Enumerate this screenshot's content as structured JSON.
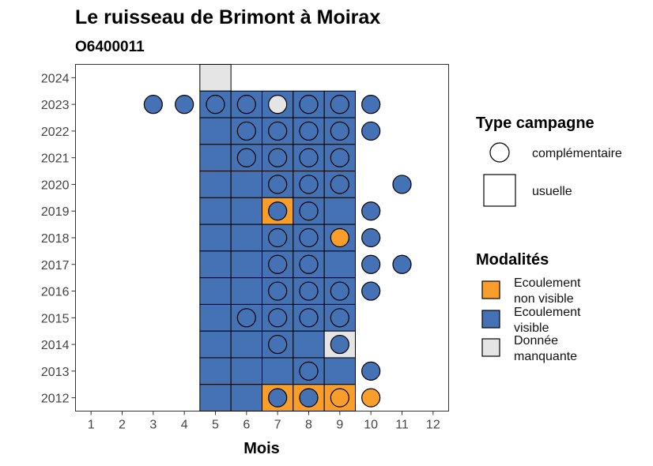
{
  "chart_data": {
    "type": "heatmap",
    "title": "Le ruisseau de Brimont à Moirax",
    "subtitle": "O6400011",
    "xlabel": "Mois",
    "ylabel": "",
    "x_ticks": [
      "1",
      "2",
      "3",
      "4",
      "5",
      "6",
      "7",
      "8",
      "9",
      "10",
      "11",
      "12"
    ],
    "y_ticks": [
      "2012",
      "2013",
      "2014",
      "2015",
      "2016",
      "2017",
      "2018",
      "2019",
      "2020",
      "2021",
      "2022",
      "2023",
      "2024"
    ],
    "xlim": [
      0.5,
      12.5
    ],
    "ylim": [
      2011.5,
      2024.5
    ],
    "colors": {
      "Ecoulement non visible": "#F99D2B",
      "Ecoulement visible": "#4472B4",
      "Donnée manquante": "#E5E5E5"
    },
    "legend_campaign": {
      "title": "Type campagne",
      "items": [
        {
          "label": "complémentaire",
          "shape": "circle"
        },
        {
          "label": "usuelle",
          "shape": "square"
        }
      ]
    },
    "legend_modalites": {
      "title": "Modalités",
      "items": [
        {
          "key": "Ecoulement non visible",
          "lines": [
            "Ecoulement",
            "non visible"
          ]
        },
        {
          "key": "Ecoulement visible",
          "lines": [
            "Ecoulement",
            "visible"
          ]
        },
        {
          "key": "Donnée manquante",
          "lines": [
            "Donnée",
            "manquante"
          ]
        }
      ]
    },
    "legend_position": "right",
    "grid": false,
    "usuelle": [
      {
        "year": 2024,
        "months": [
          [
            5,
            "Donnée manquante"
          ]
        ]
      },
      {
        "year": 2023,
        "months": [
          [
            5,
            "Ecoulement visible"
          ],
          [
            6,
            "Ecoulement visible"
          ],
          [
            7,
            "Ecoulement visible"
          ],
          [
            8,
            "Ecoulement visible"
          ],
          [
            9,
            "Ecoulement visible"
          ]
        ]
      },
      {
        "year": 2022,
        "months": [
          [
            5,
            "Ecoulement visible"
          ],
          [
            6,
            "Ecoulement visible"
          ],
          [
            7,
            "Ecoulement visible"
          ],
          [
            8,
            "Ecoulement visible"
          ],
          [
            9,
            "Ecoulement visible"
          ]
        ]
      },
      {
        "year": 2021,
        "months": [
          [
            5,
            "Ecoulement visible"
          ],
          [
            6,
            "Ecoulement visible"
          ],
          [
            7,
            "Ecoulement visible"
          ],
          [
            8,
            "Ecoulement visible"
          ],
          [
            9,
            "Ecoulement visible"
          ]
        ]
      },
      {
        "year": 2020,
        "months": [
          [
            5,
            "Ecoulement visible"
          ],
          [
            6,
            "Ecoulement visible"
          ],
          [
            7,
            "Ecoulement visible"
          ],
          [
            8,
            "Ecoulement visible"
          ],
          [
            9,
            "Ecoulement visible"
          ]
        ]
      },
      {
        "year": 2019,
        "months": [
          [
            5,
            "Ecoulement visible"
          ],
          [
            6,
            "Ecoulement visible"
          ],
          [
            7,
            "Ecoulement non visible"
          ],
          [
            8,
            "Ecoulement visible"
          ],
          [
            9,
            "Ecoulement visible"
          ]
        ]
      },
      {
        "year": 2018,
        "months": [
          [
            5,
            "Ecoulement visible"
          ],
          [
            6,
            "Ecoulement visible"
          ],
          [
            7,
            "Ecoulement visible"
          ],
          [
            8,
            "Ecoulement visible"
          ],
          [
            9,
            "Ecoulement visible"
          ]
        ]
      },
      {
        "year": 2017,
        "months": [
          [
            5,
            "Ecoulement visible"
          ],
          [
            6,
            "Ecoulement visible"
          ],
          [
            7,
            "Ecoulement visible"
          ],
          [
            8,
            "Ecoulement visible"
          ],
          [
            9,
            "Ecoulement visible"
          ]
        ]
      },
      {
        "year": 2016,
        "months": [
          [
            5,
            "Ecoulement visible"
          ],
          [
            6,
            "Ecoulement visible"
          ],
          [
            7,
            "Ecoulement visible"
          ],
          [
            8,
            "Ecoulement visible"
          ],
          [
            9,
            "Ecoulement visible"
          ]
        ]
      },
      {
        "year": 2015,
        "months": [
          [
            5,
            "Ecoulement visible"
          ],
          [
            6,
            "Ecoulement visible"
          ],
          [
            7,
            "Ecoulement visible"
          ],
          [
            8,
            "Ecoulement visible"
          ],
          [
            9,
            "Ecoulement visible"
          ]
        ]
      },
      {
        "year": 2014,
        "months": [
          [
            5,
            "Ecoulement visible"
          ],
          [
            6,
            "Ecoulement visible"
          ],
          [
            7,
            "Ecoulement visible"
          ],
          [
            8,
            "Ecoulement visible"
          ],
          [
            9,
            "Donnée manquante"
          ]
        ]
      },
      {
        "year": 2013,
        "months": [
          [
            5,
            "Ecoulement visible"
          ],
          [
            6,
            "Ecoulement visible"
          ],
          [
            7,
            "Ecoulement visible"
          ],
          [
            8,
            "Ecoulement visible"
          ],
          [
            9,
            "Ecoulement visible"
          ]
        ]
      },
      {
        "year": 2012,
        "months": [
          [
            5,
            "Ecoulement visible"
          ],
          [
            6,
            "Ecoulement visible"
          ],
          [
            7,
            "Ecoulement non visible"
          ],
          [
            8,
            "Ecoulement non visible"
          ],
          [
            9,
            "Ecoulement non visible"
          ]
        ]
      }
    ],
    "complementaire": [
      {
        "year": 2023,
        "months": [
          [
            3,
            "Ecoulement visible"
          ],
          [
            4,
            "Ecoulement visible"
          ],
          [
            5,
            "Ecoulement visible"
          ],
          [
            6,
            "Ecoulement visible"
          ],
          [
            7,
            "Donnée manquante"
          ],
          [
            8,
            "Ecoulement visible"
          ],
          [
            9,
            "Ecoulement visible"
          ],
          [
            10,
            "Ecoulement visible"
          ]
        ]
      },
      {
        "year": 2022,
        "months": [
          [
            6,
            "Ecoulement visible"
          ],
          [
            7,
            "Ecoulement visible"
          ],
          [
            8,
            "Ecoulement visible"
          ],
          [
            9,
            "Ecoulement visible"
          ],
          [
            10,
            "Ecoulement visible"
          ]
        ]
      },
      {
        "year": 2021,
        "months": [
          [
            6,
            "Ecoulement visible"
          ],
          [
            7,
            "Ecoulement visible"
          ],
          [
            8,
            "Ecoulement visible"
          ],
          [
            9,
            "Ecoulement visible"
          ]
        ]
      },
      {
        "year": 2020,
        "months": [
          [
            7,
            "Ecoulement visible"
          ],
          [
            8,
            "Ecoulement visible"
          ],
          [
            9,
            "Ecoulement visible"
          ],
          [
            11,
            "Ecoulement visible"
          ]
        ]
      },
      {
        "year": 2019,
        "months": [
          [
            7,
            "Ecoulement visible"
          ],
          [
            8,
            "Ecoulement visible"
          ],
          [
            10,
            "Ecoulement visible"
          ]
        ]
      },
      {
        "year": 2018,
        "months": [
          [
            7,
            "Ecoulement visible"
          ],
          [
            8,
            "Ecoulement visible"
          ],
          [
            9,
            "Ecoulement non visible"
          ],
          [
            10,
            "Ecoulement visible"
          ]
        ]
      },
      {
        "year": 2017,
        "months": [
          [
            7,
            "Ecoulement visible"
          ],
          [
            8,
            "Ecoulement visible"
          ],
          [
            10,
            "Ecoulement visible"
          ],
          [
            11,
            "Ecoulement visible"
          ]
        ]
      },
      {
        "year": 2016,
        "months": [
          [
            7,
            "Ecoulement visible"
          ],
          [
            8,
            "Ecoulement visible"
          ],
          [
            9,
            "Ecoulement visible"
          ],
          [
            10,
            "Ecoulement visible"
          ]
        ]
      },
      {
        "year": 2015,
        "months": [
          [
            6,
            "Ecoulement visible"
          ],
          [
            7,
            "Ecoulement visible"
          ],
          [
            8,
            "Ecoulement visible"
          ],
          [
            9,
            "Ecoulement visible"
          ]
        ]
      },
      {
        "year": 2014,
        "months": [
          [
            7,
            "Ecoulement visible"
          ],
          [
            9,
            "Ecoulement visible"
          ]
        ]
      },
      {
        "year": 2013,
        "months": [
          [
            8,
            "Ecoulement visible"
          ],
          [
            10,
            "Ecoulement visible"
          ]
        ]
      },
      {
        "year": 2012,
        "months": [
          [
            7,
            "Ecoulement visible"
          ],
          [
            8,
            "Ecoulement visible"
          ],
          [
            9,
            "Ecoulement non visible"
          ],
          [
            10,
            "Ecoulement non visible"
          ]
        ]
      }
    ]
  }
}
